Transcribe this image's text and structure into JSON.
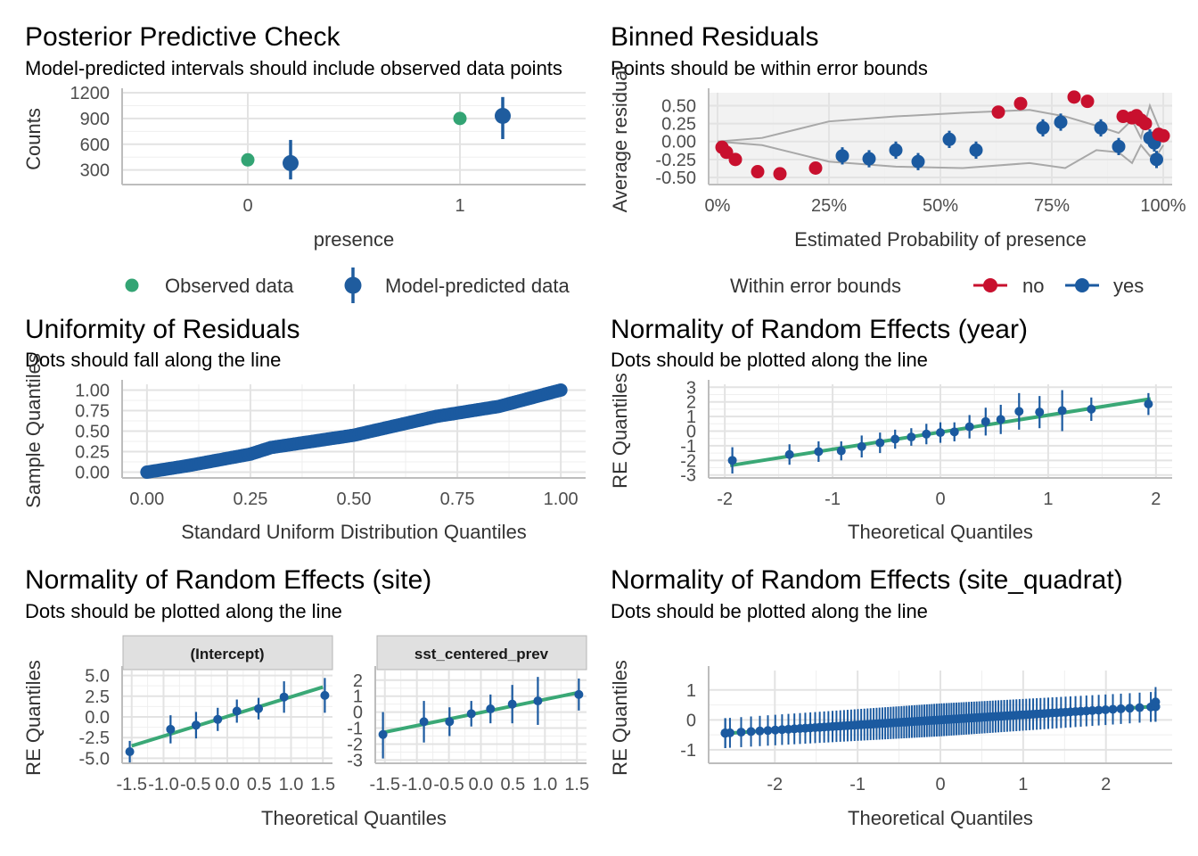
{
  "colors": {
    "observed": "#33a474",
    "predicted": "#1f5c9e",
    "no": "#c8102e",
    "yes": "#1b5aa0",
    "refline": "#3aa876",
    "envelope": "#a8a8a8"
  },
  "panels": {
    "ppc": {
      "title": "Posterior Predictive Check",
      "subtitle": "Model-predicted intervals should include observed data points",
      "xlabel": "presence",
      "ylabel": "Counts",
      "legend": {
        "observed": "Observed data",
        "predicted": "Model-predicted data"
      }
    },
    "binned": {
      "title": "Binned Residuals",
      "subtitle": "Points should be within error bounds",
      "xlabel": "Estimated Probability of presence",
      "ylabel": "Average residual",
      "legend": {
        "title": "Within error bounds",
        "no": "no",
        "yes": "yes"
      }
    },
    "uniform": {
      "title": "Uniformity of Residuals",
      "subtitle": "Dots should fall along the line",
      "xlabel": "Standard Uniform Distribution Quantiles",
      "ylabel": "Sample Quantiles"
    },
    "re_year": {
      "title": "Normality of Random Effects (year)",
      "subtitle": "Dots should be plotted along the line",
      "xlabel": "Theoretical Quantiles",
      "ylabel": "RE Quantiles"
    },
    "re_site": {
      "title": "Normality of Random Effects (site)",
      "subtitle": "Dots should be plotted along the line",
      "xlabel": "Theoretical Quantiles",
      "ylabel": "RE Quantiles",
      "strip_left": "(Intercept)",
      "strip_right": "sst_centered_prev"
    },
    "re_quad": {
      "title": "Normality of Random Effects (site_quadrat)",
      "subtitle": "Dots should be plotted along the line",
      "xlabel": "Theoretical Quantiles",
      "ylabel": "RE Quantiles"
    }
  },
  "chart_data": [
    {
      "id": "ppc",
      "type": "scatter",
      "x_categories": [
        "0",
        "1"
      ],
      "ylim": [
        130,
        1200
      ],
      "y_ticks": [
        300,
        600,
        900,
        1200
      ],
      "observed": [
        {
          "x": "0",
          "y": 418
        },
        {
          "x": "1",
          "y": 900
        }
      ],
      "predicted": [
        {
          "x": "0",
          "y": 380,
          "lo": 190,
          "hi": 650
        },
        {
          "x": "1",
          "y": 930,
          "lo": 660,
          "hi": 1150
        }
      ]
    },
    {
      "id": "binned",
      "type": "scatter",
      "xlim": [
        -0.02,
        1.02
      ],
      "ylim": [
        -0.6,
        0.68
      ],
      "x_ticks": [
        0,
        0.25,
        0.5,
        0.75,
        1
      ],
      "x_tick_labels": [
        "0%",
        "25%",
        "50%",
        "75%",
        "100%"
      ],
      "y_ticks": [
        -0.5,
        -0.25,
        0,
        0.25,
        0.5
      ],
      "y_tick_labels": [
        "-0.50",
        "-0.25",
        "0.00",
        "0.25",
        "0.50"
      ],
      "envelope_upper": [
        [
          0.0,
          0.0
        ],
        [
          0.1,
          0.05
        ],
        [
          0.25,
          0.28
        ],
        [
          0.4,
          0.35
        ],
        [
          0.55,
          0.4
        ],
        [
          0.7,
          0.44
        ],
        [
          0.78,
          0.35
        ],
        [
          0.85,
          0.22
        ],
        [
          0.9,
          0.12
        ],
        [
          0.93,
          0.3
        ],
        [
          0.95,
          0.05
        ],
        [
          0.97,
          0.5
        ],
        [
          0.99,
          0.2
        ],
        [
          1.0,
          0.05
        ]
      ],
      "envelope_lower": [
        [
          0.0,
          0.0
        ],
        [
          0.1,
          -0.05
        ],
        [
          0.25,
          -0.28
        ],
        [
          0.4,
          -0.35
        ],
        [
          0.55,
          -0.37
        ],
        [
          0.7,
          -0.3
        ],
        [
          0.78,
          -0.37
        ],
        [
          0.85,
          -0.12
        ],
        [
          0.9,
          -0.15
        ],
        [
          0.93,
          -0.3
        ],
        [
          0.95,
          -0.05
        ],
        [
          0.97,
          -0.2
        ],
        [
          0.99,
          -0.15
        ],
        [
          1.0,
          -0.05
        ]
      ],
      "points": [
        {
          "x": 0.01,
          "y": -0.08,
          "ok": "no"
        },
        {
          "x": 0.02,
          "y": -0.15,
          "ok": "no"
        },
        {
          "x": 0.04,
          "y": -0.25,
          "ok": "no"
        },
        {
          "x": 0.09,
          "y": -0.42,
          "ok": "no"
        },
        {
          "x": 0.14,
          "y": -0.45,
          "ok": "no"
        },
        {
          "x": 0.22,
          "y": -0.37,
          "ok": "no"
        },
        {
          "x": 0.28,
          "y": -0.2,
          "ok": "yes",
          "lo": -0.32,
          "hi": -0.08
        },
        {
          "x": 0.34,
          "y": -0.24,
          "ok": "yes",
          "lo": -0.36,
          "hi": -0.12
        },
        {
          "x": 0.4,
          "y": -0.12,
          "ok": "yes",
          "lo": -0.24,
          "hi": 0.0
        },
        {
          "x": 0.45,
          "y": -0.28,
          "ok": "yes",
          "lo": -0.4,
          "hi": -0.16
        },
        {
          "x": 0.52,
          "y": 0.03,
          "ok": "yes",
          "lo": -0.09,
          "hi": 0.15
        },
        {
          "x": 0.58,
          "y": -0.12,
          "ok": "yes",
          "lo": -0.24,
          "hi": 0.0
        },
        {
          "x": 0.63,
          "y": 0.41,
          "ok": "no"
        },
        {
          "x": 0.68,
          "y": 0.53,
          "ok": "no"
        },
        {
          "x": 0.73,
          "y": 0.19,
          "ok": "yes",
          "lo": 0.07,
          "hi": 0.31
        },
        {
          "x": 0.77,
          "y": 0.27,
          "ok": "yes",
          "lo": 0.15,
          "hi": 0.39
        },
        {
          "x": 0.8,
          "y": 0.62,
          "ok": "no"
        },
        {
          "x": 0.83,
          "y": 0.56,
          "ok": "no"
        },
        {
          "x": 0.86,
          "y": 0.19,
          "ok": "yes",
          "lo": 0.07,
          "hi": 0.31
        },
        {
          "x": 0.9,
          "y": -0.07,
          "ok": "yes",
          "lo": -0.19,
          "hi": 0.05
        },
        {
          "x": 0.91,
          "y": 0.35,
          "ok": "no"
        },
        {
          "x": 0.93,
          "y": 0.33,
          "ok": "no"
        },
        {
          "x": 0.94,
          "y": 0.36,
          "ok": "no"
        },
        {
          "x": 0.95,
          "y": 0.3,
          "ok": "no"
        },
        {
          "x": 0.96,
          "y": 0.25,
          "ok": "no"
        },
        {
          "x": 0.97,
          "y": 0.05,
          "ok": "yes",
          "lo": -0.07,
          "hi": 0.17
        },
        {
          "x": 0.98,
          "y": -0.02,
          "ok": "yes",
          "lo": -0.14,
          "hi": 0.1
        },
        {
          "x": 0.985,
          "y": -0.25,
          "ok": "yes",
          "lo": -0.37,
          "hi": -0.13
        },
        {
          "x": 0.99,
          "y": 0.1,
          "ok": "no"
        },
        {
          "x": 1.0,
          "y": 0.08,
          "ok": "no"
        }
      ]
    },
    {
      "id": "uniform",
      "type": "scatter",
      "xlim": [
        -0.06,
        1.06
      ],
      "ylim": [
        -0.07,
        1.07
      ],
      "x_ticks": [
        0,
        0.25,
        0.5,
        0.75,
        1
      ],
      "x_tick_labels": [
        "0.00",
        "0.25",
        "0.50",
        "0.75",
        "1.00"
      ],
      "y_ticks": [
        0,
        0.25,
        0.5,
        0.75,
        1
      ],
      "y_tick_labels": [
        "0.00",
        "0.25",
        "0.50",
        "0.75",
        "1.00"
      ],
      "curve": [
        [
          0,
          0
        ],
        [
          0.1,
          0.08
        ],
        [
          0.25,
          0.22
        ],
        [
          0.3,
          0.3
        ],
        [
          0.5,
          0.45
        ],
        [
          0.7,
          0.68
        ],
        [
          0.85,
          0.8
        ],
        [
          1,
          1
        ]
      ]
    },
    {
      "id": "re_year",
      "type": "scatter",
      "xlim": [
        -2.15,
        2.15
      ],
      "ylim": [
        -3.2,
        3.2
      ],
      "x_ticks": [
        -2,
        -1,
        0,
        1,
        2
      ],
      "y_ticks": [
        -3,
        -2,
        -1,
        0,
        1,
        2,
        3
      ],
      "y_tick_labels": [
        "-3",
        "-2",
        "-1",
        "0",
        "1",
        "2",
        "3"
      ],
      "line": [
        [
          -1.95,
          -2.35
        ],
        [
          1.95,
          2.2
        ]
      ],
      "points": [
        {
          "x": -1.93,
          "y": -2.0,
          "lo": -2.9,
          "hi": -1.1
        },
        {
          "x": -1.4,
          "y": -1.6,
          "lo": -2.3,
          "hi": -0.9
        },
        {
          "x": -1.13,
          "y": -1.4,
          "lo": -2.1,
          "hi": -0.7
        },
        {
          "x": -0.92,
          "y": -1.35,
          "lo": -2.0,
          "hi": -0.7
        },
        {
          "x": -0.73,
          "y": -1.05,
          "lo": -1.8,
          "hi": -0.3
        },
        {
          "x": -0.56,
          "y": -0.8,
          "lo": -1.5,
          "hi": -0.1
        },
        {
          "x": -0.42,
          "y": -0.55,
          "lo": -1.2,
          "hi": 0.1
        },
        {
          "x": -0.27,
          "y": -0.4,
          "lo": -1.0,
          "hi": 0.2
        },
        {
          "x": -0.13,
          "y": -0.2,
          "lo": -0.9,
          "hi": 0.5
        },
        {
          "x": 0.0,
          "y": -0.1,
          "lo": -0.8,
          "hi": 0.6
        },
        {
          "x": 0.13,
          "y": -0.05,
          "lo": -0.7,
          "hi": 0.6
        },
        {
          "x": 0.27,
          "y": 0.3,
          "lo": -0.5,
          "hi": 1.1
        },
        {
          "x": 0.42,
          "y": 0.65,
          "lo": -0.3,
          "hi": 1.6
        },
        {
          "x": 0.56,
          "y": 0.8,
          "lo": -0.2,
          "hi": 1.8
        },
        {
          "x": 0.73,
          "y": 1.35,
          "lo": 0.1,
          "hi": 2.6
        },
        {
          "x": 0.92,
          "y": 1.3,
          "lo": 0.2,
          "hi": 2.4
        },
        {
          "x": 1.13,
          "y": 1.4,
          "lo": 0.0,
          "hi": 2.8
        },
        {
          "x": 1.4,
          "y": 1.5,
          "lo": 0.7,
          "hi": 2.3
        },
        {
          "x": 1.93,
          "y": 1.85,
          "lo": 1.1,
          "hi": 2.6
        }
      ]
    },
    {
      "id": "re_site_intercept",
      "type": "scatter",
      "facet": "(Intercept)",
      "xlim": [
        -1.65,
        1.65
      ],
      "ylim": [
        -5.6,
        5.6
      ],
      "x_ticks": [
        -1.5,
        -1.0,
        -0.5,
        0.0,
        0.5,
        1.0,
        1.5
      ],
      "x_tick_labels": [
        "-1.5",
        "-1.0",
        "-0.5",
        "0.0",
        "0.5",
        "1.0",
        "1.5"
      ],
      "y_ticks": [
        -5,
        -2.5,
        0,
        2.5,
        5
      ],
      "y_tick_labels": [
        "-5.0",
        "-2.5",
        "0.0",
        "2.5",
        "5.0"
      ],
      "line": [
        [
          -1.5,
          -3.5
        ],
        [
          1.5,
          3.6
        ]
      ],
      "points": [
        {
          "x": -1.53,
          "y": -4.2,
          "lo": -5.5,
          "hi": -2.9
        },
        {
          "x": -0.89,
          "y": -1.5,
          "lo": -3.2,
          "hi": 0.2
        },
        {
          "x": -0.49,
          "y": -1.0,
          "lo": -2.6,
          "hi": 0.6
        },
        {
          "x": -0.15,
          "y": -0.3,
          "lo": -1.7,
          "hi": 1.1
        },
        {
          "x": 0.15,
          "y": 0.7,
          "lo": -0.7,
          "hi": 2.1
        },
        {
          "x": 0.49,
          "y": 1.0,
          "lo": -0.3,
          "hi": 2.3
        },
        {
          "x": 0.89,
          "y": 2.4,
          "lo": 0.5,
          "hi": 4.3
        },
        {
          "x": 1.53,
          "y": 2.6,
          "lo": 0.5,
          "hi": 4.7
        }
      ]
    },
    {
      "id": "re_site_sst",
      "type": "scatter",
      "facet": "sst_centered_prev",
      "xlim": [
        -1.65,
        1.65
      ],
      "ylim": [
        -3.2,
        2.6
      ],
      "x_ticks": [
        -1.5,
        -1.0,
        -0.5,
        0.0,
        0.5,
        1.0,
        1.5
      ],
      "x_tick_labels": [
        "-1.5",
        "-1.0",
        "-0.5",
        "0.0",
        "0.5",
        "1.0",
        "1.5"
      ],
      "y_ticks": [
        -3,
        -2,
        -1,
        0,
        1,
        2
      ],
      "y_tick_labels": [
        "-3",
        "-2",
        "-1",
        "0",
        "1",
        "2"
      ],
      "line": [
        [
          -1.5,
          -1.25
        ],
        [
          1.5,
          1.2
        ]
      ],
      "points": [
        {
          "x": -1.53,
          "y": -1.4,
          "lo": -2.9,
          "hi": 0.0
        },
        {
          "x": -0.89,
          "y": -0.6,
          "lo": -1.9,
          "hi": 0.7
        },
        {
          "x": -0.49,
          "y": -0.6,
          "lo": -1.5,
          "hi": 0.3
        },
        {
          "x": -0.15,
          "y": -0.1,
          "lo": -0.9,
          "hi": 0.7
        },
        {
          "x": 0.15,
          "y": 0.2,
          "lo": -0.7,
          "hi": 1.1
        },
        {
          "x": 0.49,
          "y": 0.5,
          "lo": -0.7,
          "hi": 1.7
        },
        {
          "x": 0.89,
          "y": 0.7,
          "lo": -0.8,
          "hi": 2.2
        },
        {
          "x": 1.53,
          "y": 1.1,
          "lo": 0.1,
          "hi": 2.1
        }
      ]
    },
    {
      "id": "re_quad",
      "type": "scatter",
      "xlim": [
        -2.8,
        2.8
      ],
      "ylim": [
        -1.45,
        1.65
      ],
      "x_ticks": [
        -2,
        -1,
        0,
        1,
        2
      ],
      "y_ticks": [
        -1,
        0,
        1
      ],
      "line": [
        [
          -2.6,
          -0.45
        ],
        [
          2.6,
          0.45
        ]
      ],
      "curve_low": [
        -2.6,
        -0.45
      ],
      "curve_high": [
        2.6,
        0.6
      ],
      "n_points": 120
    }
  ]
}
